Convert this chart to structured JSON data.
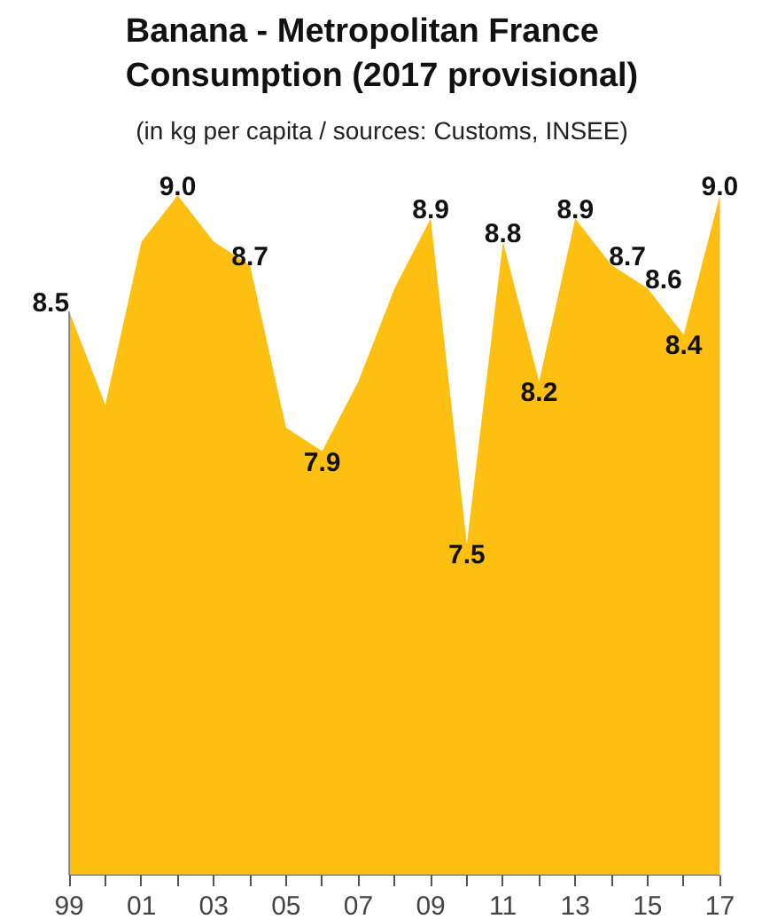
{
  "chart_data": {
    "type": "area",
    "title": "Banana - Metropolitan France Consumption (2017 provisional)",
    "subtitle": "(in kg per capita / sources: Customs, INSEE)",
    "categories": [
      "99",
      null,
      "01",
      null,
      "03",
      null,
      "05",
      null,
      "07",
      null,
      "09",
      null,
      "11",
      null,
      "13",
      null,
      "15",
      null,
      "17"
    ],
    "values": [
      8.5,
      8.1,
      8.8,
      9.0,
      8.8,
      8.7,
      8.0,
      7.9,
      8.2,
      8.6,
      8.9,
      7.5,
      8.8,
      8.2,
      8.9,
      8.7,
      8.6,
      8.4,
      9.0
    ],
    "value_labels": [
      "8.5",
      null,
      null,
      "9.0",
      null,
      "8.7",
      null,
      "7.9",
      null,
      null,
      "8.9",
      "7.5",
      "8.8",
      "8.2",
      "8.9",
      "8.7",
      "8.6",
      "8.4",
      "9.0"
    ],
    "color": "#fdbf10",
    "grid": false
  }
}
